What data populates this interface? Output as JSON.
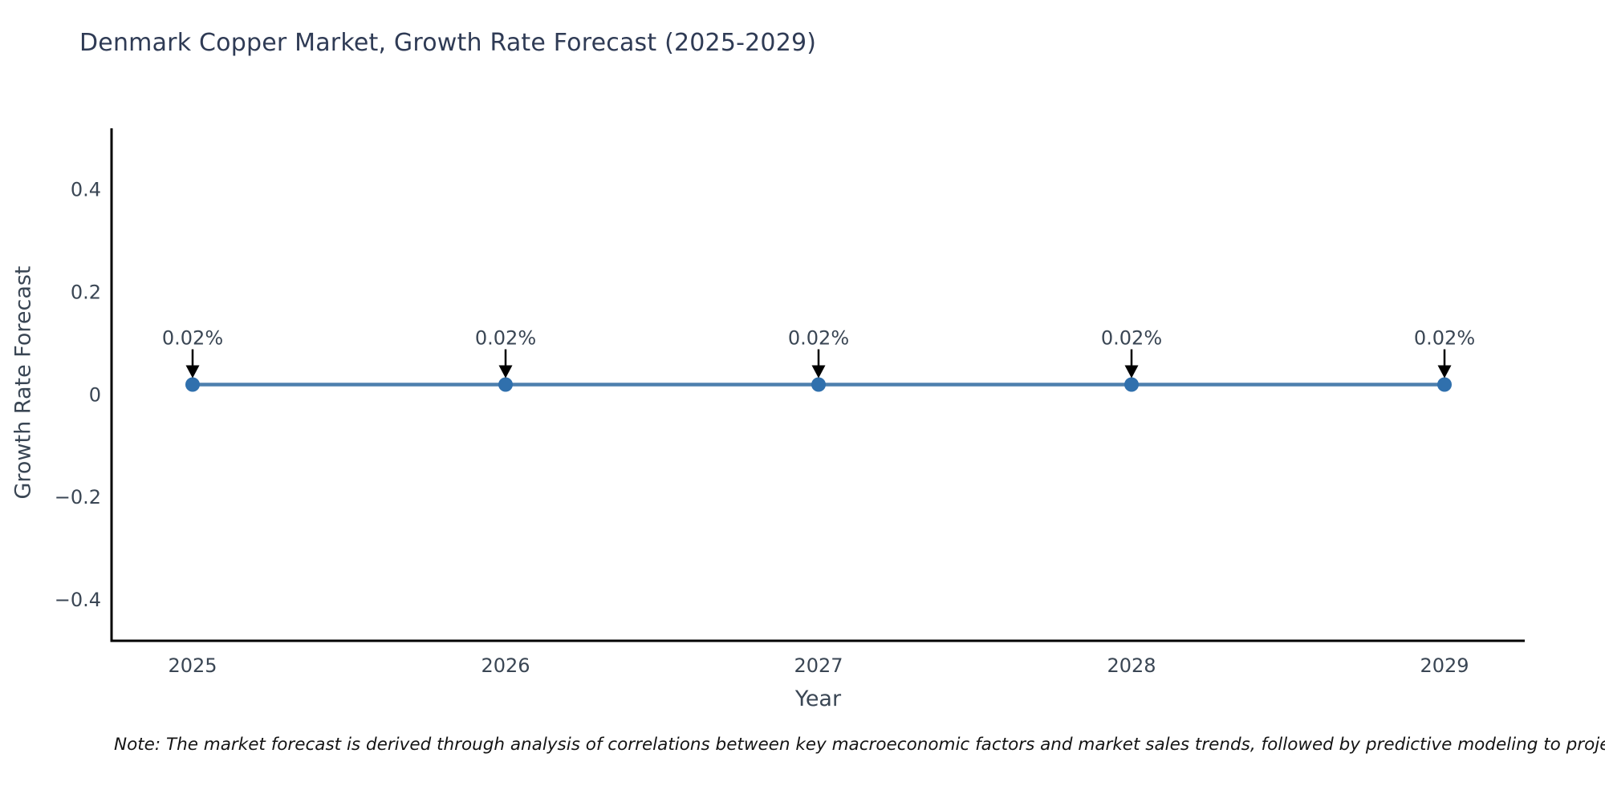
{
  "note": "Note: The market forecast is derived through analysis of correlations between key macroeconomic factors and market sales trends, followed by predictive modeling to project future sa",
  "chart_data": {
    "type": "line",
    "title": "Denmark Copper Market, Growth Rate Forecast (2025-2029)",
    "xlabel": "Year",
    "ylabel": "Growth Rate Forecast",
    "categories": [
      "2025",
      "2026",
      "2027",
      "2028",
      "2029"
    ],
    "x": [
      2025,
      2026,
      2027,
      2028,
      2029
    ],
    "series": [
      {
        "name": "Growth Rate Forecast",
        "values": [
          0.02,
          0.02,
          0.02,
          0.02,
          0.02
        ]
      }
    ],
    "data_labels": [
      "0.02%",
      "0.02%",
      "0.02%",
      "0.02%",
      "0.02%"
    ],
    "yticks": [
      {
        "value": -0.4,
        "label": "−0.4"
      },
      {
        "value": -0.2,
        "label": "−0.2"
      },
      {
        "value": 0,
        "label": "0"
      },
      {
        "value": 0.2,
        "label": "0.2"
      },
      {
        "value": 0.4,
        "label": "0.4"
      }
    ],
    "ylim": [
      -0.48,
      0.52
    ],
    "grid": false,
    "legend": "none",
    "annotation_style": "down-arrow",
    "colors": {
      "line": "#4d7fae",
      "marker": "#3070ad",
      "arrow": "#000000",
      "axis": "#000000",
      "tick_text": "#3a4654",
      "title_text": "#2f3b55",
      "note_text": "#141414",
      "background": "#ffffff"
    }
  }
}
